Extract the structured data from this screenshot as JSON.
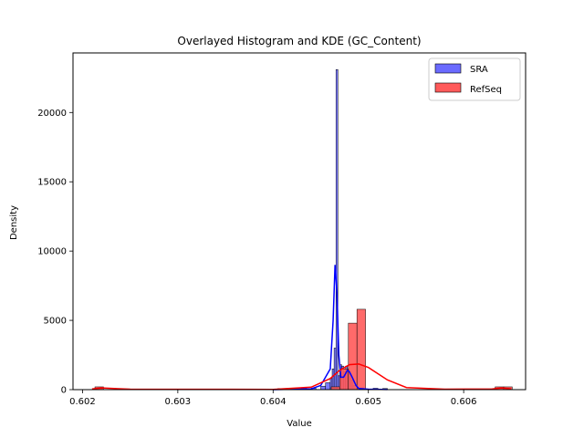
{
  "chart_data": {
    "type": "histogram",
    "title": "Overlayed Histogram and KDE (GC_Content)",
    "xlabel": "Value",
    "ylabel": "Density",
    "xlim": [
      0.6019,
      0.60665
    ],
    "ylim": [
      0,
      24300
    ],
    "xticks": [
      0.602,
      0.603,
      0.604,
      0.605,
      0.606
    ],
    "xtick_labels": [
      "0.602",
      "0.603",
      "0.604",
      "0.605",
      "0.606"
    ],
    "yticks": [
      0,
      5000,
      10000,
      15000,
      20000
    ],
    "ytick_labels": [
      "0",
      "5000",
      "10000",
      "15000",
      "20000"
    ],
    "legend_position": "top-right",
    "grid": false,
    "series": [
      {
        "name": "SRA",
        "fill": "#6a6aff",
        "line": "#0000ff",
        "bins": [
          [
            0.60405,
            0.6041,
            80
          ],
          [
            0.60415,
            0.6042,
            100
          ],
          [
            0.6043,
            0.60435,
            150
          ],
          [
            0.6044,
            0.60445,
            100
          ],
          [
            0.6045,
            0.60455,
            250
          ],
          [
            0.60455,
            0.6046,
            500
          ],
          [
            0.6046,
            0.60462,
            800
          ],
          [
            0.60462,
            0.60464,
            1500
          ],
          [
            0.60464,
            0.60466,
            3000
          ],
          [
            0.60466,
            0.60468,
            23100
          ],
          [
            0.60468,
            0.6047,
            1000
          ],
          [
            0.6047,
            0.60472,
            1800
          ],
          [
            0.60472,
            0.60474,
            1700
          ],
          [
            0.60474,
            0.60476,
            1300
          ],
          [
            0.60476,
            0.60478,
            1700
          ],
          [
            0.60478,
            0.6048,
            1500
          ],
          [
            0.6048,
            0.60482,
            1100
          ],
          [
            0.60482,
            0.60484,
            700
          ],
          [
            0.60484,
            0.60486,
            300
          ],
          [
            0.6049,
            0.60495,
            120
          ],
          [
            0.60505,
            0.6051,
            100
          ],
          [
            0.60515,
            0.6052,
            80
          ]
        ],
        "kde_x": [
          0.604,
          0.6044,
          0.6045,
          0.6046,
          0.60463,
          0.60465,
          0.60467,
          0.60469,
          0.60471,
          0.60474,
          0.60478,
          0.6048,
          0.60483,
          0.60487,
          0.6049,
          0.605,
          0.6052
        ],
        "kde_y": [
          0,
          60,
          300,
          1500,
          5000,
          9000,
          7000,
          2500,
          900,
          900,
          1400,
          1300,
          900,
          300,
          80,
          30,
          10
        ]
      },
      {
        "name": "RefSeq",
        "fill": "#ff5a5a",
        "line": "#ff0000",
        "bins": [
          [
            0.60213,
            0.60222,
            200
          ],
          [
            0.60461,
            0.6047,
            200
          ],
          [
            0.6047,
            0.60479,
            1500
          ],
          [
            0.60479,
            0.60488,
            4800
          ],
          [
            0.60488,
            0.60497,
            5800
          ],
          [
            0.60633,
            0.60642,
            200
          ],
          [
            0.60642,
            0.60651,
            200
          ]
        ],
        "kde_x": [
          0.6021,
          0.6022,
          0.6025,
          0.604,
          0.6044,
          0.6046,
          0.6047,
          0.6048,
          0.6049,
          0.605,
          0.6052,
          0.6054,
          0.6058,
          0.6063,
          0.6064,
          0.6065
        ],
        "kde_y": [
          50,
          120,
          30,
          20,
          180,
          800,
          1400,
          1800,
          1850,
          1600,
          700,
          150,
          30,
          50,
          120,
          50
        ]
      }
    ]
  }
}
